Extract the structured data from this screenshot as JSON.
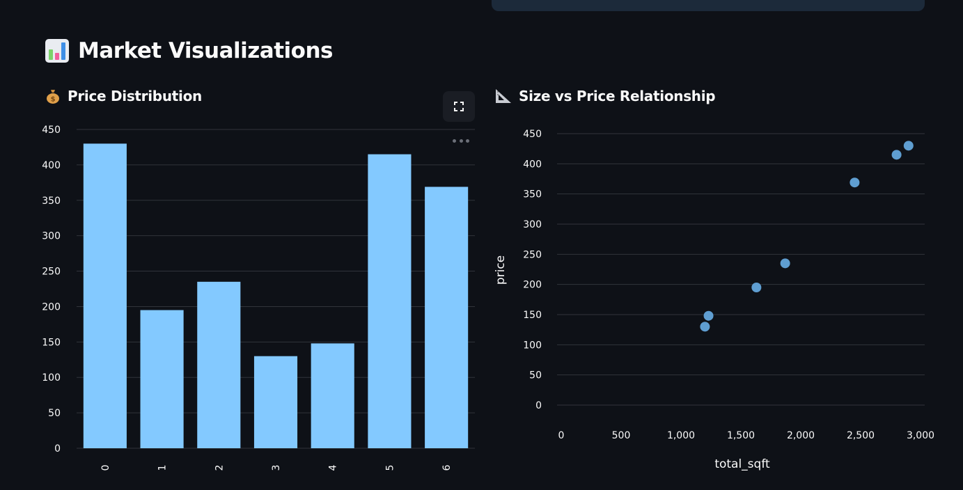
{
  "page": {
    "title": "Market Visualizations",
    "title_icon": "bar-chart-emoji-icon"
  },
  "bar_panel": {
    "title": "Price Distribution",
    "icon": "money-bag-emoji-icon"
  },
  "scatter_panel": {
    "title": "Size vs Price Relationship",
    "icon": "triangular-ruler-emoji-icon"
  },
  "colors": {
    "background": "#0e1117",
    "bar": "#83c9ff",
    "point": "#5f9ed1",
    "grid": "#31343b"
  },
  "chart_data": [
    {
      "type": "bar",
      "title": "Price Distribution",
      "categories": [
        "0",
        "1",
        "2",
        "3",
        "4",
        "5",
        "6"
      ],
      "values": [
        430,
        195,
        235,
        130,
        148,
        415,
        369
      ],
      "ylim": [
        0,
        450
      ],
      "yticks": [
        "0",
        "50",
        "100",
        "150",
        "200",
        "250",
        "300",
        "350",
        "400",
        "450"
      ],
      "xlabel": "",
      "ylabel": "",
      "grid": true
    },
    {
      "type": "scatter",
      "title": "Size vs Price Relationship",
      "x": [
        1200,
        1230,
        1630,
        1870,
        2450,
        2800,
        2900
      ],
      "y": [
        130,
        148,
        195,
        235,
        369,
        415,
        430
      ],
      "xlim": [
        0,
        3000
      ],
      "ylim": [
        0,
        450
      ],
      "xticks": [
        "0",
        "500",
        "1,000",
        "1,500",
        "2,000",
        "2,500",
        "3,000"
      ],
      "yticks": [
        "0",
        "50",
        "100",
        "150",
        "200",
        "250",
        "300",
        "350",
        "400",
        "450"
      ],
      "xlabel": "total_sqft",
      "ylabel": "price",
      "grid": true
    }
  ]
}
